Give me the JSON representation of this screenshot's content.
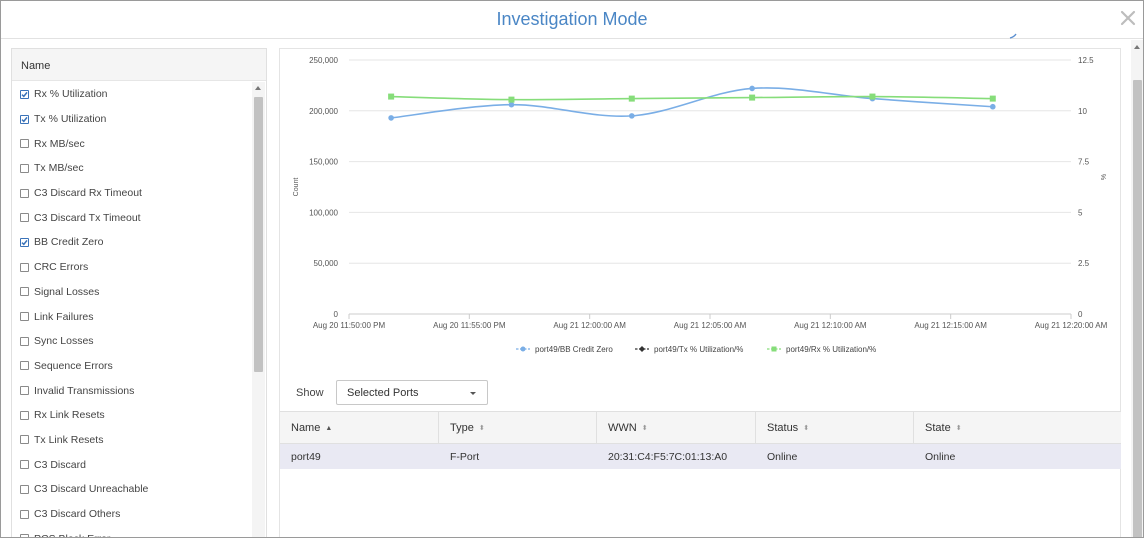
{
  "dialog": {
    "title": "Investigation Mode",
    "close_icon": "close-x-icon"
  },
  "metrics_panel": {
    "header": "Name",
    "items": [
      {
        "label": "Rx % Utilization",
        "checked": true
      },
      {
        "label": "Tx % Utilization",
        "checked": true
      },
      {
        "label": "Rx MB/sec",
        "checked": false
      },
      {
        "label": "Tx MB/sec",
        "checked": false
      },
      {
        "label": "C3 Discard Rx Timeout",
        "checked": false
      },
      {
        "label": "C3 Discard Tx Timeout",
        "checked": false
      },
      {
        "label": "BB Credit Zero",
        "checked": true
      },
      {
        "label": "CRC Errors",
        "checked": false
      },
      {
        "label": "Signal Losses",
        "checked": false
      },
      {
        "label": "Link Failures",
        "checked": false
      },
      {
        "label": "Sync Losses",
        "checked": false
      },
      {
        "label": "Sequence Errors",
        "checked": false
      },
      {
        "label": "Invalid Transmissions",
        "checked": false
      },
      {
        "label": "Rx Link Resets",
        "checked": false
      },
      {
        "label": "Tx Link Resets",
        "checked": false
      },
      {
        "label": "C3 Discard",
        "checked": false
      },
      {
        "label": "C3 Discard Unreachable",
        "checked": false
      },
      {
        "label": "C3 Discard Others",
        "checked": false
      },
      {
        "label": "PCS Block Error",
        "checked": false
      }
    ]
  },
  "chart_data": {
    "type": "line",
    "title": "",
    "ylabel": "Count",
    "y2label": "%",
    "ylim": [
      0,
      250000
    ],
    "y2lim": [
      0,
      12.5
    ],
    "y_ticks": [
      "0",
      "50,000",
      "100,000",
      "150,000",
      "200,000",
      "250,000"
    ],
    "y2_ticks": [
      "0",
      "2.5",
      "5",
      "7.5",
      "10",
      "12.5"
    ],
    "x_ticks": [
      "Aug 20 11:50:00 PM",
      "Aug 20 11:55:00 PM",
      "Aug 21 12:00:00 AM",
      "Aug 21 12:05:00 AM",
      "Aug 21 12:10:00 AM",
      "Aug 21 12:15:00 AM",
      "Aug 21 12:20:00 AM"
    ],
    "x": [
      "Aug 20 11:51:45 PM",
      "Aug 20 11:56:45 PM",
      "Aug 21 12:01:45 AM",
      "Aug 21 12:06:45 AM",
      "Aug 21 12:11:45 AM",
      "Aug 21 12:16:45 AM"
    ],
    "grid": true,
    "legend": "bottom",
    "series": [
      {
        "name": "port49/BB Credit Zero",
        "axis": "left",
        "color": "#7aaee6",
        "marker": "circle",
        "values": [
          193000,
          206000,
          195000,
          222000,
          212000,
          204000
        ]
      },
      {
        "name": "port49/Tx % Utilization/%",
        "axis": "right",
        "color": "#333333",
        "marker": "diamond",
        "values": [
          null,
          null,
          null,
          null,
          null,
          null
        ]
      },
      {
        "name": "port49/Rx % Utilization/%",
        "axis": "right",
        "color": "#86dd7a",
        "marker": "square",
        "values": [
          10.7,
          10.55,
          10.6,
          10.65,
          10.7,
          10.6
        ]
      }
    ]
  },
  "filter": {
    "show_label": "Show",
    "selected": "Selected Ports"
  },
  "table": {
    "columns": [
      {
        "label": "Name",
        "sort": "asc"
      },
      {
        "label": "Type",
        "sort": "none"
      },
      {
        "label": "WWN",
        "sort": "none"
      },
      {
        "label": "Status",
        "sort": "none"
      },
      {
        "label": "State",
        "sort": "none"
      }
    ],
    "rows": [
      {
        "name": "port49",
        "type": "F-Port",
        "wwn": "20:31:C4:F5:7C:01:13:A0",
        "status": "Online",
        "state": "Online"
      }
    ]
  },
  "colors": {
    "title": "#4a86c5",
    "checkbox_checked": "#3b73b9",
    "selected_row": "#e9e9f3"
  }
}
